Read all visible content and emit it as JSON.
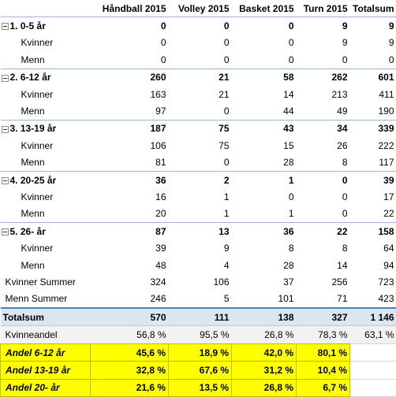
{
  "headers": [
    "Håndball 2015",
    "Volley 2015",
    "Basket 2015",
    "Turn 2015",
    "Totalsum"
  ],
  "groups": [
    {
      "label": "1. 0-5 år",
      "values": [
        "0",
        "0",
        "0",
        "9",
        "9"
      ],
      "rows": [
        {
          "label": "Kvinner",
          "values": [
            "0",
            "0",
            "0",
            "9",
            "9"
          ]
        },
        {
          "label": "Menn",
          "values": [
            "0",
            "0",
            "0",
            "0",
            "0"
          ]
        }
      ]
    },
    {
      "label": "2. 6-12 år",
      "values": [
        "260",
        "21",
        "58",
        "262",
        "601"
      ],
      "rows": [
        {
          "label": "Kvinner",
          "values": [
            "163",
            "21",
            "14",
            "213",
            "411"
          ]
        },
        {
          "label": "Menn",
          "values": [
            "97",
            "0",
            "44",
            "49",
            "190"
          ]
        }
      ]
    },
    {
      "label": "3. 13-19 år",
      "values": [
        "187",
        "75",
        "43",
        "34",
        "339"
      ],
      "rows": [
        {
          "label": "Kvinner",
          "values": [
            "106",
            "75",
            "15",
            "26",
            "222"
          ]
        },
        {
          "label": "Menn",
          "values": [
            "81",
            "0",
            "28",
            "8",
            "117"
          ]
        }
      ]
    },
    {
      "label": "4. 20-25 år",
      "values": [
        "36",
        "2",
        "1",
        "0",
        "39"
      ],
      "rows": [
        {
          "label": "Kvinner",
          "values": [
            "16",
            "1",
            "0",
            "0",
            "17"
          ]
        },
        {
          "label": "Menn",
          "values": [
            "20",
            "1",
            "1",
            "0",
            "22"
          ]
        }
      ]
    },
    {
      "label": "5. 26- år",
      "values": [
        "87",
        "13",
        "36",
        "22",
        "158"
      ],
      "rows": [
        {
          "label": "Kvinner",
          "values": [
            "39",
            "9",
            "8",
            "8",
            "64"
          ]
        },
        {
          "label": "Menn",
          "values": [
            "48",
            "4",
            "28",
            "14",
            "94"
          ]
        }
      ]
    }
  ],
  "summaries": [
    {
      "label": "Kvinner Summer",
      "values": [
        "324",
        "106",
        "37",
        "256",
        "723"
      ]
    },
    {
      "label": "Menn Summer",
      "values": [
        "246",
        "5",
        "101",
        "71",
        "423"
      ]
    }
  ],
  "total": {
    "label": "Totalsum",
    "values": [
      "570",
      "111",
      "138",
      "327",
      "1 146"
    ]
  },
  "share": {
    "label": "Kvinneandel",
    "values": [
      "56,8 %",
      "95,5 %",
      "26,8 %",
      "78,3 %",
      "63,1 %"
    ]
  },
  "andel": [
    {
      "label": "Andel 6-12 år",
      "values": [
        "45,6 %",
        "18,9 %",
        "42,0 %",
        "80,1 %"
      ]
    },
    {
      "label": "Andel 13-19 år",
      "values": [
        "32,8 %",
        "67,6 %",
        "31,2 %",
        "10,4 %"
      ]
    },
    {
      "label": "Andel 20- år",
      "values": [
        "21,6 %",
        "13,5 %",
        "26,8 %",
        "6,7 %"
      ]
    }
  ]
}
